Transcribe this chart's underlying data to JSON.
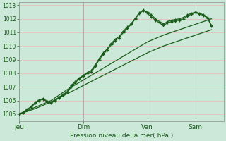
{
  "background_color": "#cce8d8",
  "grid_color": "#e8b8b8",
  "line_color": "#1a5c1a",
  "tick_color": "#1a5c1a",
  "spine_color": "#999999",
  "xlabel": "Pression niveau de la mer( hPa )",
  "ylim": [
    1004.5,
    1013.2
  ],
  "yticks": [
    1005,
    1006,
    1007,
    1008,
    1009,
    1010,
    1011,
    1012,
    1013
  ],
  "day_labels": [
    "Jeu",
    "Dim",
    "Ven",
    "Sam"
  ],
  "day_positions": [
    0,
    16,
    32,
    44
  ],
  "total_points": 52,
  "series1_x": [
    0,
    1,
    2,
    3,
    4,
    5,
    6,
    7,
    8,
    9,
    10,
    11,
    12,
    13,
    14,
    15,
    16,
    17,
    18,
    19,
    20,
    21,
    22,
    23,
    24,
    25,
    26,
    27,
    28,
    29,
    30,
    31,
    32,
    33,
    34,
    35,
    36,
    37,
    38,
    39,
    40,
    41,
    42,
    43,
    44,
    45,
    46,
    47,
    48
  ],
  "series1_y": [
    1005.0,
    1005.1,
    1005.3,
    1005.5,
    1005.8,
    1006.0,
    1006.1,
    1005.9,
    1005.8,
    1006.0,
    1006.2,
    1006.4,
    1006.6,
    1007.0,
    1007.3,
    1007.6,
    1007.8,
    1008.0,
    1008.1,
    1008.5,
    1009.0,
    1009.4,
    1009.7,
    1010.1,
    1010.4,
    1010.6,
    1011.0,
    1011.3,
    1011.6,
    1012.0,
    1012.4,
    1012.6,
    1012.5,
    1012.3,
    1012.0,
    1011.8,
    1011.6,
    1011.8,
    1011.9,
    1011.95,
    1012.0,
    1012.1,
    1012.3,
    1012.4,
    1012.5,
    1012.4,
    1012.3,
    1012.1,
    1011.5
  ],
  "series2_x": [
    0,
    1,
    2,
    3,
    4,
    5,
    6,
    7,
    8,
    9,
    10,
    11,
    12,
    13,
    14,
    15,
    16,
    17,
    18,
    19,
    20,
    21,
    22,
    23,
    24,
    25,
    26,
    27,
    28,
    29,
    30,
    31,
    32,
    33,
    34,
    35,
    36,
    37,
    38,
    39,
    40,
    41,
    42,
    43,
    44,
    45,
    46,
    47,
    48
  ],
  "series2_y": [
    1005.0,
    1005.15,
    1005.35,
    1005.55,
    1005.85,
    1006.05,
    1006.15,
    1005.95,
    1005.85,
    1006.05,
    1006.25,
    1006.45,
    1006.65,
    1007.1,
    1007.4,
    1007.65,
    1007.85,
    1008.05,
    1008.2,
    1008.6,
    1009.1,
    1009.5,
    1009.8,
    1010.2,
    1010.5,
    1010.7,
    1011.1,
    1011.4,
    1011.65,
    1012.05,
    1012.45,
    1012.65,
    1012.4,
    1012.15,
    1011.9,
    1011.7,
    1011.5,
    1011.7,
    1011.8,
    1011.85,
    1011.9,
    1012.0,
    1012.2,
    1012.35,
    1012.45,
    1012.35,
    1012.25,
    1012.05,
    1011.45
  ],
  "series3_x": [
    0,
    4,
    8,
    12,
    16,
    20,
    24,
    28,
    32,
    36,
    40,
    44,
    48
  ],
  "series3_y": [
    1005.0,
    1005.5,
    1006.0,
    1006.8,
    1007.5,
    1008.2,
    1008.9,
    1009.6,
    1010.3,
    1010.8,
    1011.2,
    1011.6,
    1012.0
  ],
  "series4_x": [
    0,
    4,
    8,
    12,
    16,
    20,
    24,
    28,
    32,
    36,
    40,
    44,
    48
  ],
  "series4_y": [
    1005.0,
    1005.4,
    1005.9,
    1006.5,
    1007.1,
    1007.7,
    1008.3,
    1008.9,
    1009.5,
    1010.0,
    1010.4,
    1010.8,
    1011.2
  ]
}
